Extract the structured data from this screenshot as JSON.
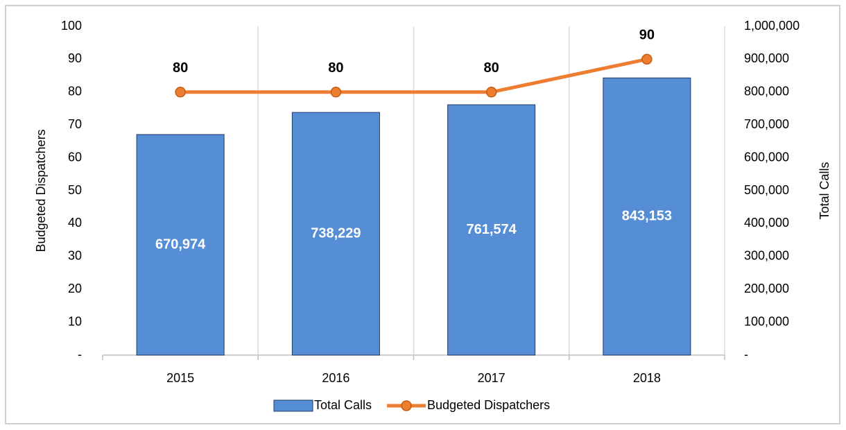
{
  "chart_data": {
    "type": "combo",
    "categories": [
      "2015",
      "2016",
      "2017",
      "2018"
    ],
    "series": [
      {
        "name": "Total Calls",
        "type": "bar",
        "axis": "y2",
        "color": "#558ed5",
        "values": [
          670974,
          738229,
          761574,
          843153
        ],
        "value_labels": [
          "670,974",
          "738,229",
          "761,574",
          "843,153"
        ]
      },
      {
        "name": "Budgeted Dispatchers",
        "type": "line",
        "axis": "y",
        "color": "#ed7d31",
        "values": [
          80,
          80,
          80,
          90
        ]
      }
    ],
    "ylabel": "Budgeted Dispatchers",
    "y2label": "Total Calls",
    "ylim": [
      0,
      100
    ],
    "yticks": [
      {
        "value": 0,
        "label": "-"
      },
      10,
      20,
      30,
      40,
      50,
      60,
      70,
      80,
      90,
      100
    ],
    "y2lim": [
      0,
      1000000
    ],
    "y2ticks": [
      {
        "value": 0,
        "label": "-"
      },
      {
        "value": 100000,
        "label": "100,000"
      },
      {
        "value": 200000,
        "label": "200,000"
      },
      {
        "value": 300000,
        "label": "300,000"
      },
      {
        "value": 400000,
        "label": "400,000"
      },
      {
        "value": 500000,
        "label": "500,000"
      },
      {
        "value": 600000,
        "label": "600,000"
      },
      {
        "value": 700000,
        "label": "700,000"
      },
      {
        "value": 800000,
        "label": "800,000"
      },
      {
        "value": 900000,
        "label": "900,000"
      },
      {
        "value": 1000000,
        "label": "1,000,000"
      }
    ],
    "grid": "x",
    "legend": "bottom"
  }
}
